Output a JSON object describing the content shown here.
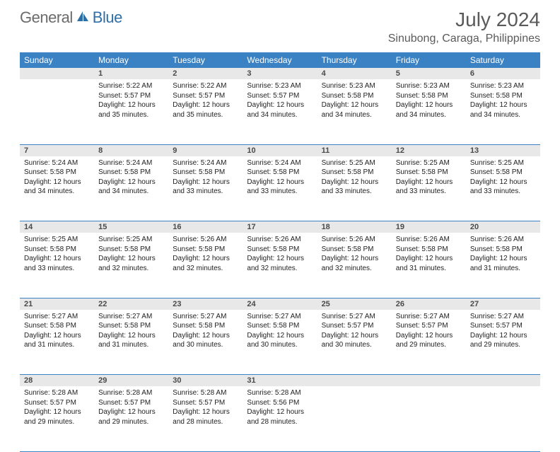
{
  "logo": {
    "text1": "General",
    "text2": "Blue"
  },
  "title": "July 2024",
  "location": "Sinubong, Caraga, Philippines",
  "colors": {
    "header_bg": "#3b82c4",
    "header_text": "#ffffff",
    "daynum_bg": "#e8e8e8",
    "rule": "#3b82c4",
    "logo_gray": "#6b6b6b",
    "logo_blue": "#2f6fa8"
  },
  "day_headers": [
    "Sunday",
    "Monday",
    "Tuesday",
    "Wednesday",
    "Thursday",
    "Friday",
    "Saturday"
  ],
  "weeks": [
    [
      null,
      {
        "n": "1",
        "sr": "5:22 AM",
        "ss": "5:57 PM",
        "dl": "12 hours and 35 minutes."
      },
      {
        "n": "2",
        "sr": "5:22 AM",
        "ss": "5:57 PM",
        "dl": "12 hours and 35 minutes."
      },
      {
        "n": "3",
        "sr": "5:23 AM",
        "ss": "5:57 PM",
        "dl": "12 hours and 34 minutes."
      },
      {
        "n": "4",
        "sr": "5:23 AM",
        "ss": "5:58 PM",
        "dl": "12 hours and 34 minutes."
      },
      {
        "n": "5",
        "sr": "5:23 AM",
        "ss": "5:58 PM",
        "dl": "12 hours and 34 minutes."
      },
      {
        "n": "6",
        "sr": "5:23 AM",
        "ss": "5:58 PM",
        "dl": "12 hours and 34 minutes."
      }
    ],
    [
      {
        "n": "7",
        "sr": "5:24 AM",
        "ss": "5:58 PM",
        "dl": "12 hours and 34 minutes."
      },
      {
        "n": "8",
        "sr": "5:24 AM",
        "ss": "5:58 PM",
        "dl": "12 hours and 34 minutes."
      },
      {
        "n": "9",
        "sr": "5:24 AM",
        "ss": "5:58 PM",
        "dl": "12 hours and 33 minutes."
      },
      {
        "n": "10",
        "sr": "5:24 AM",
        "ss": "5:58 PM",
        "dl": "12 hours and 33 minutes."
      },
      {
        "n": "11",
        "sr": "5:25 AM",
        "ss": "5:58 PM",
        "dl": "12 hours and 33 minutes."
      },
      {
        "n": "12",
        "sr": "5:25 AM",
        "ss": "5:58 PM",
        "dl": "12 hours and 33 minutes."
      },
      {
        "n": "13",
        "sr": "5:25 AM",
        "ss": "5:58 PM",
        "dl": "12 hours and 33 minutes."
      }
    ],
    [
      {
        "n": "14",
        "sr": "5:25 AM",
        "ss": "5:58 PM",
        "dl": "12 hours and 33 minutes."
      },
      {
        "n": "15",
        "sr": "5:25 AM",
        "ss": "5:58 PM",
        "dl": "12 hours and 32 minutes."
      },
      {
        "n": "16",
        "sr": "5:26 AM",
        "ss": "5:58 PM",
        "dl": "12 hours and 32 minutes."
      },
      {
        "n": "17",
        "sr": "5:26 AM",
        "ss": "5:58 PM",
        "dl": "12 hours and 32 minutes."
      },
      {
        "n": "18",
        "sr": "5:26 AM",
        "ss": "5:58 PM",
        "dl": "12 hours and 32 minutes."
      },
      {
        "n": "19",
        "sr": "5:26 AM",
        "ss": "5:58 PM",
        "dl": "12 hours and 31 minutes."
      },
      {
        "n": "20",
        "sr": "5:26 AM",
        "ss": "5:58 PM",
        "dl": "12 hours and 31 minutes."
      }
    ],
    [
      {
        "n": "21",
        "sr": "5:27 AM",
        "ss": "5:58 PM",
        "dl": "12 hours and 31 minutes."
      },
      {
        "n": "22",
        "sr": "5:27 AM",
        "ss": "5:58 PM",
        "dl": "12 hours and 31 minutes."
      },
      {
        "n": "23",
        "sr": "5:27 AM",
        "ss": "5:58 PM",
        "dl": "12 hours and 30 minutes."
      },
      {
        "n": "24",
        "sr": "5:27 AM",
        "ss": "5:58 PM",
        "dl": "12 hours and 30 minutes."
      },
      {
        "n": "25",
        "sr": "5:27 AM",
        "ss": "5:57 PM",
        "dl": "12 hours and 30 minutes."
      },
      {
        "n": "26",
        "sr": "5:27 AM",
        "ss": "5:57 PM",
        "dl": "12 hours and 29 minutes."
      },
      {
        "n": "27",
        "sr": "5:27 AM",
        "ss": "5:57 PM",
        "dl": "12 hours and 29 minutes."
      }
    ],
    [
      {
        "n": "28",
        "sr": "5:28 AM",
        "ss": "5:57 PM",
        "dl": "12 hours and 29 minutes."
      },
      {
        "n": "29",
        "sr": "5:28 AM",
        "ss": "5:57 PM",
        "dl": "12 hours and 29 minutes."
      },
      {
        "n": "30",
        "sr": "5:28 AM",
        "ss": "5:57 PM",
        "dl": "12 hours and 28 minutes."
      },
      {
        "n": "31",
        "sr": "5:28 AM",
        "ss": "5:56 PM",
        "dl": "12 hours and 28 minutes."
      },
      null,
      null,
      null
    ]
  ],
  "labels": {
    "sunrise": "Sunrise:",
    "sunset": "Sunset:",
    "daylight": "Daylight:"
  }
}
